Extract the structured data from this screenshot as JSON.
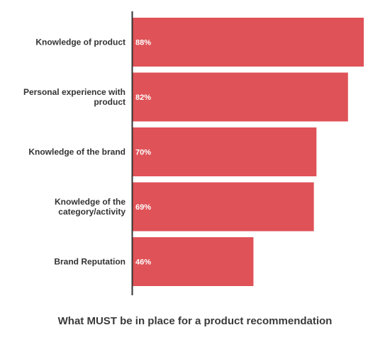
{
  "chart_data": {
    "type": "bar",
    "orientation": "horizontal",
    "title": "What MUST be in place for a product recommendation",
    "categories": [
      "Knowledge of product",
      "Personal experience with product",
      "Knowledge of the brand",
      "Knowledge of the category/activity",
      "Brand Reputation"
    ],
    "category_lines": [
      [
        "Knowledge of product"
      ],
      [
        "Personal experience with",
        "product"
      ],
      [
        "Knowledge of the brand"
      ],
      [
        "Knowledge of the",
        "category/activity"
      ],
      [
        "Brand Reputation"
      ]
    ],
    "values": [
      88,
      82,
      70,
      69,
      46
    ],
    "data_labels": [
      "88%",
      "82%",
      "70%",
      "69%",
      "46%"
    ],
    "xlim": [
      0,
      88
    ],
    "value_suffix": "%",
    "grid": false,
    "legend": "none",
    "colors": {
      "bar": "#df5257",
      "axis": "#333333"
    }
  }
}
